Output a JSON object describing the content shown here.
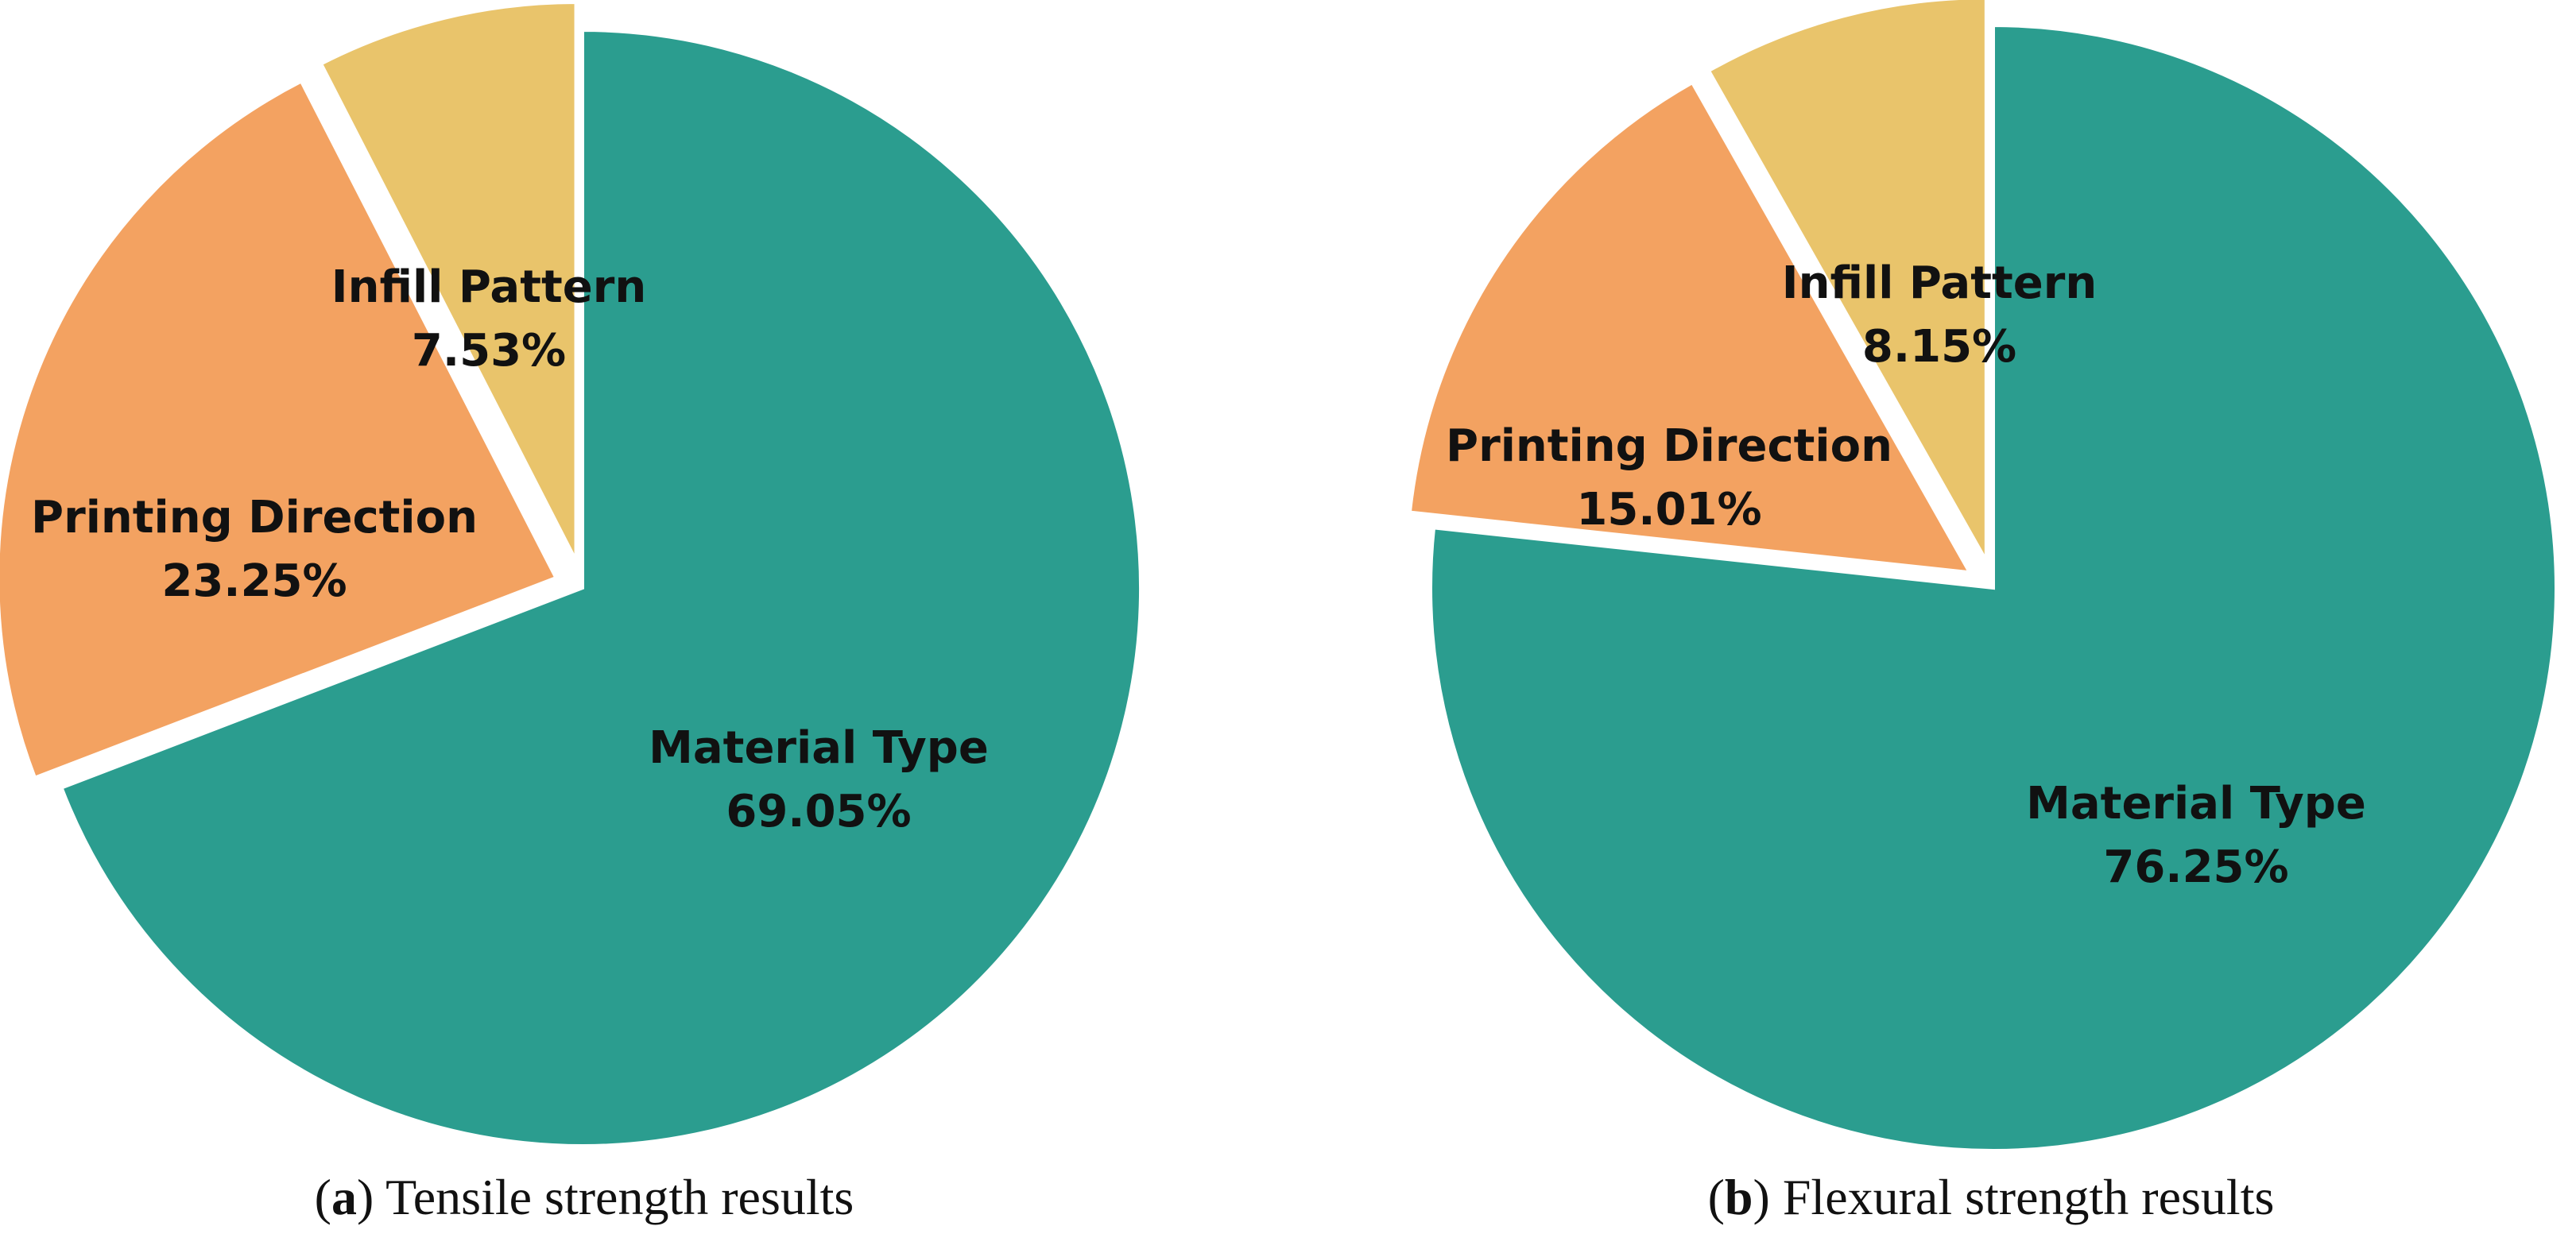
{
  "colors": {
    "material_type": "#2b9d8f",
    "printing_direction": "#f3a261",
    "infill_pattern": "#e9c46b",
    "background": "#ffffff"
  },
  "chart_data": [
    {
      "type": "pie",
      "caption_letter": "a",
      "caption_text": "Tensile strength results",
      "slices": [
        {
          "label": "Material Type",
          "value": 69.05,
          "value_label": "69.05%",
          "color": "#2b9d8f",
          "exploded": false
        },
        {
          "label": "Printing Direction",
          "value": 23.25,
          "value_label": "23.25%",
          "color": "#f3a261",
          "exploded": true
        },
        {
          "label": "Infill Pattern",
          "value": 7.53,
          "value_label": "7.53%",
          "color": "#e9c46b",
          "exploded": true
        }
      ],
      "start_angle": "12 o'clock",
      "direction": "clockwise"
    },
    {
      "type": "pie",
      "caption_letter": "b",
      "caption_text": "Flexural strength results",
      "slices": [
        {
          "label": "Material Type",
          "value": 76.25,
          "value_label": "76.25%",
          "color": "#2b9d8f",
          "exploded": false
        },
        {
          "label": "Printing Direction",
          "value": 15.01,
          "value_label": "15.01%",
          "color": "#f3a261",
          "exploded": true
        },
        {
          "label": "Infill Pattern",
          "value": 8.15,
          "value_label": "8.15%",
          "color": "#e9c46b",
          "exploded": true
        }
      ],
      "start_angle": "12 o'clock",
      "direction": "clockwise"
    }
  ]
}
